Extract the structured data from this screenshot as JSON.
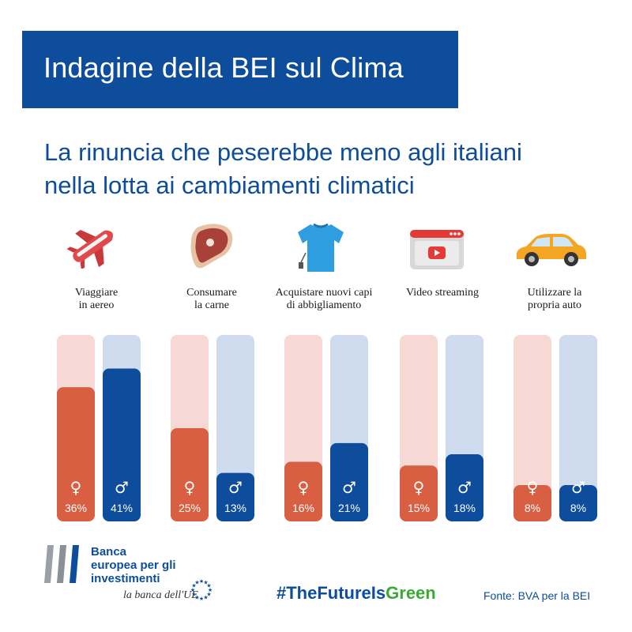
{
  "header": {
    "title": "Indagine della BEI sul Clima",
    "subtitle_lines": [
      "La rinuncia che peserebbe meno agli italiani",
      "nella lotta ai cambiamenti climatici"
    ]
  },
  "colors": {
    "brand_blue": "#0d4d9c",
    "female_bar": "#d95f43",
    "female_track": "#f6d9d4",
    "male_bar": "#0d4d9c",
    "male_track": "#cfdcef",
    "hashtag_green": "#3aa935"
  },
  "icons": [
    "airplane-icon",
    "steak-icon",
    "tshirt-icon",
    "video-streaming-icon",
    "car-icon"
  ],
  "chart_data": {
    "type": "bar",
    "categories": [
      "Viaggiare in aereo",
      "Consumare la carne",
      "Acquistare nuovi capi di abbigliamento",
      "Video streaming",
      "Utilizzare la propria auto"
    ],
    "category_label_lines": [
      [
        "Viaggiare",
        "in aereo"
      ],
      [
        "Consumare",
        "la carne"
      ],
      [
        "Acquistare nuovi capi",
        "di abbigliamento"
      ],
      [
        "Video streaming"
      ],
      [
        "Utilizzare la",
        "propria auto"
      ]
    ],
    "series": [
      {
        "symbol": "♀",
        "values": [
          36,
          25,
          16,
          15,
          8
        ],
        "labels": [
          "36%",
          "25%",
          "16%",
          "15%",
          "8%"
        ]
      },
      {
        "symbol": "♂",
        "values": [
          41,
          13,
          21,
          18,
          8
        ],
        "labels": [
          "41%",
          "13%",
          "21%",
          "18%",
          "8%"
        ]
      }
    ],
    "ylim": [
      0,
      50
    ]
  },
  "footer": {
    "logo_lines": [
      "Banca",
      "europea per gli",
      "investimenti"
    ],
    "logo_tagline": "la banca dell'UE",
    "hashtag_main": "#TheFutureIs",
    "hashtag_green": "Green",
    "source": "Fonte: BVA per la BEI"
  }
}
